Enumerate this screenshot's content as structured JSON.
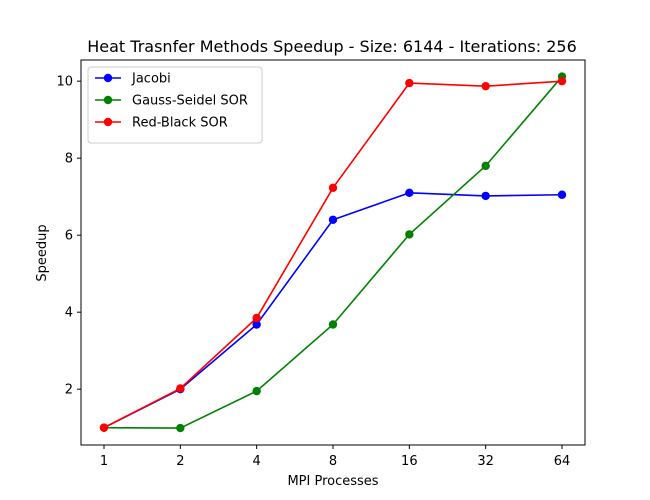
{
  "chart_data": {
    "type": "line",
    "title": "Heat Trasnfer Methods Speedup - Size: 6144 - Iterations: 256",
    "xlabel": "MPI Processes",
    "ylabel": "Speedup",
    "categories": [
      "1",
      "2",
      "4",
      "8",
      "16",
      "32",
      "64"
    ],
    "yticks": [
      "2",
      "4",
      "6",
      "8",
      "10"
    ],
    "ylim": [
      0.55,
      10.55
    ],
    "grid": false,
    "legend_position": "top-left",
    "series": [
      {
        "name": "Jacobi",
        "color": "#0000ff",
        "values": [
          1.0,
          2.0,
          3.68,
          6.4,
          7.1,
          7.02,
          7.05
        ]
      },
      {
        "name": "Gauss-Seidel SOR",
        "color": "#008000",
        "values": [
          1.0,
          0.99,
          1.95,
          3.68,
          6.02,
          7.8,
          10.12
        ]
      },
      {
        "name": "Red-Black SOR",
        "color": "#ff0000",
        "values": [
          1.0,
          2.02,
          3.85,
          7.23,
          9.95,
          9.87,
          10.0
        ]
      }
    ]
  }
}
